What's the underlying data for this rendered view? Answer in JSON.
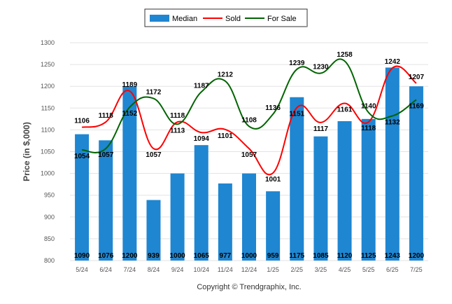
{
  "chart_data": {
    "type": "bar",
    "categories": [
      "5/24",
      "6/24",
      "7/24",
      "8/24",
      "9/24",
      "10/24",
      "11/24",
      "12/24",
      "1/25",
      "2/25",
      "3/25",
      "4/25",
      "5/25",
      "6/25",
      "7/25"
    ],
    "series": [
      {
        "name": "Median",
        "type": "bar",
        "color": "#1f86d1",
        "values": [
          1090,
          1076,
          1200,
          939,
          1000,
          1065,
          977,
          1000,
          959,
          1175,
          1085,
          1120,
          1125,
          1243,
          1200
        ]
      },
      {
        "name": "Sold",
        "type": "line",
        "color": "#ff0000",
        "values": [
          1106,
          1118,
          1189,
          1057,
          1118,
          1094,
          1101,
          1057,
          1001,
          1151,
          1117,
          1161,
          1118,
          1242,
          1207
        ]
      },
      {
        "name": "For Sale",
        "type": "line",
        "color": "#006400",
        "values": [
          1054,
          1057,
          1152,
          1172,
          1113,
          1187,
          1212,
          1108,
          1136,
          1239,
          1230,
          1258,
          1140,
          1132,
          1169
        ]
      }
    ],
    "ylabel": "Price (in $,000)",
    "xlabel": "",
    "ylim": [
      800,
      1300
    ],
    "yticks": [
      800,
      850,
      900,
      950,
      1000,
      1050,
      1100,
      1150,
      1200,
      1250,
      1300
    ],
    "grid": true,
    "legend": "top-center",
    "footer": "Copyright © Trendgraphix, Inc."
  }
}
